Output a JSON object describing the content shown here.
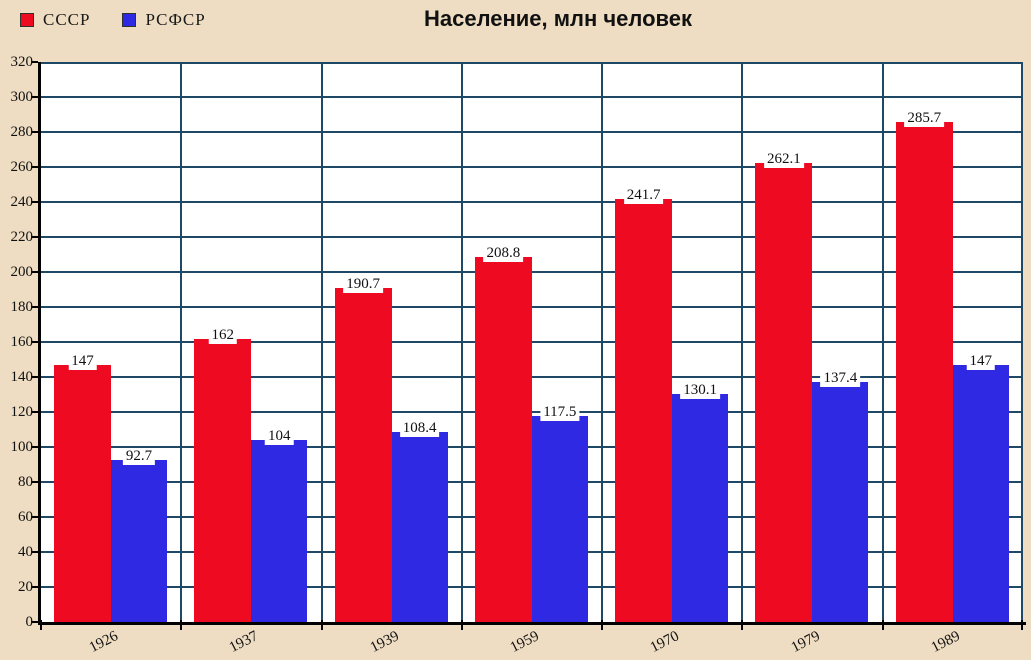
{
  "title": "Население, млн человек",
  "chart_data": {
    "type": "bar",
    "title": "Население, млн человек",
    "categories": [
      "1926",
      "1937",
      "1939",
      "1959",
      "1970",
      "1979",
      "1989"
    ],
    "series": [
      {
        "name": "СССР",
        "color": "#ee0b22",
        "values": [
          147,
          162,
          190.7,
          208.8,
          241.7,
          262.1,
          285.7
        ]
      },
      {
        "name": "РСФСР",
        "color": "#2f29e3",
        "values": [
          92.7,
          104,
          108.4,
          117.5,
          130.1,
          137.4,
          147
        ]
      }
    ],
    "xlabel": "",
    "ylabel": "",
    "ylim": [
      0,
      320
    ],
    "ytick_step": 20,
    "grid": true,
    "legend_position": "top-left",
    "colors": {
      "background": "#eeddc2",
      "plot_background": "#ffffff",
      "gridline": "#1e4866",
      "axis": "#000000",
      "text": "#111111"
    }
  }
}
